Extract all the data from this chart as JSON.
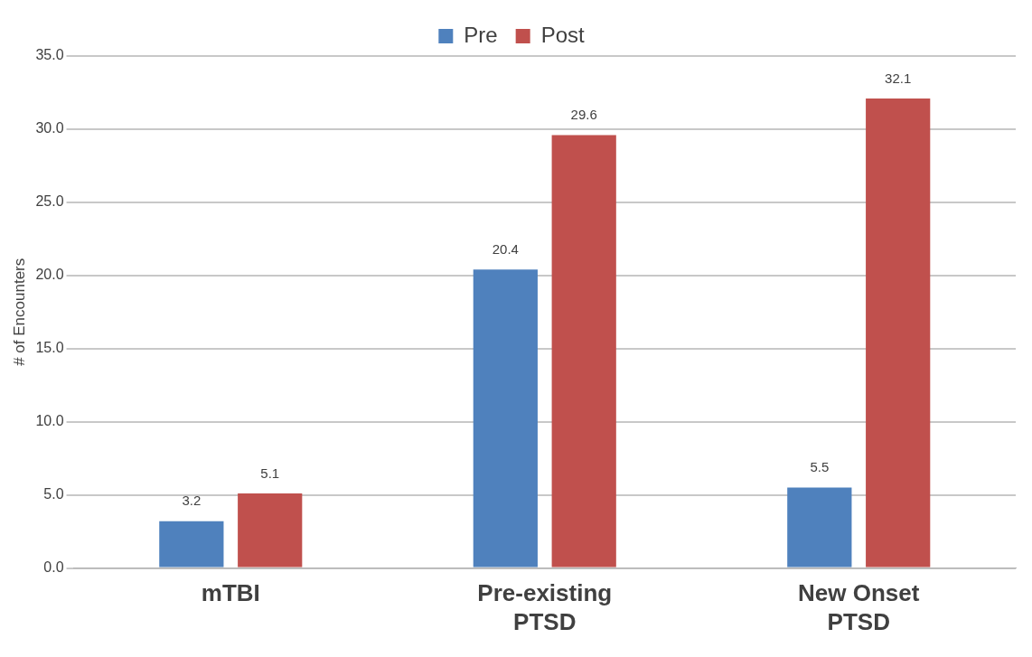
{
  "chart_data": {
    "type": "bar",
    "ylabel": "# of Encounters",
    "categories": [
      "mTBI",
      "Pre-existing PTSD",
      "New Onset PTSD"
    ],
    "series": [
      {
        "name": "Pre",
        "color": "#4f81bd",
        "values": [
          3.2,
          20.4,
          5.5
        ]
      },
      {
        "name": "Post",
        "color": "#c0504d",
        "values": [
          5.1,
          29.6,
          32.1
        ]
      }
    ],
    "ylim": [
      0,
      35
    ],
    "yticks": [
      {
        "value": 0,
        "label": "0.0"
      },
      {
        "value": 5,
        "label": "5.0"
      },
      {
        "value": 10,
        "label": "10.0"
      },
      {
        "value": 15,
        "label": "15.0"
      },
      {
        "value": 20,
        "label": "20.0"
      },
      {
        "value": 25,
        "label": "25.0"
      },
      {
        "value": 30,
        "label": "30.0"
      },
      {
        "value": 35,
        "label": "35.0"
      }
    ],
    "grid": "y",
    "legend": "top",
    "data_labels": true
  }
}
